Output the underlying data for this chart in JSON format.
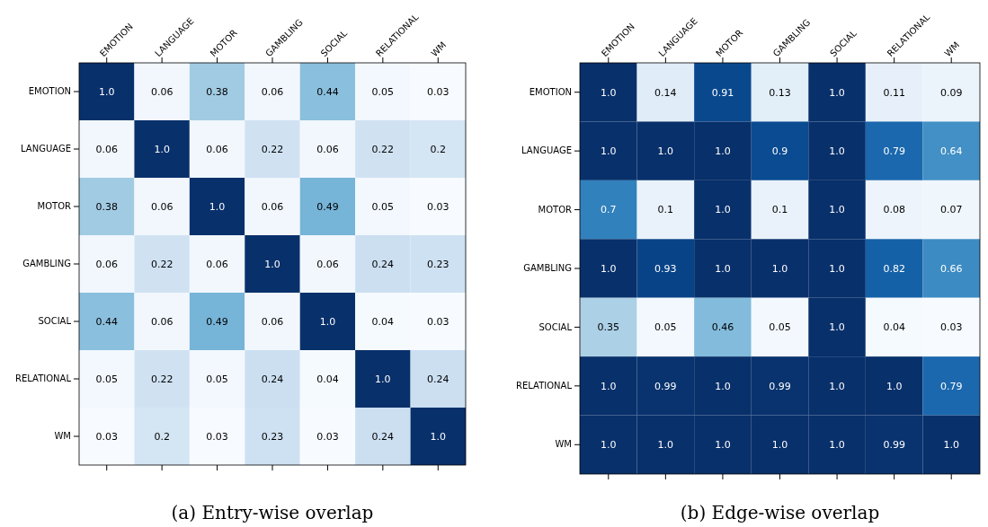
{
  "chart_data": [
    {
      "type": "heatmap",
      "title": "(a) Entry-wise overlap",
      "categories": [
        "EMOTION",
        "LANGUAGE",
        "MOTOR",
        "GAMBLING",
        "SOCIAL",
        "RELATIONAL",
        "WM"
      ],
      "y_categories": [
        "EMOTION",
        "LANGUAGE",
        "MOTOR",
        "GAMBLING",
        "SOCIAL",
        "RELATIONAL",
        "WM"
      ],
      "cells": [
        [
          1.0,
          0.06,
          0.38,
          0.06,
          0.44,
          0.05,
          0.03
        ],
        [
          0.06,
          1.0,
          0.06,
          0.22,
          0.06,
          0.22,
          0.2
        ],
        [
          0.38,
          0.06,
          1.0,
          0.06,
          0.49,
          0.05,
          0.03
        ],
        [
          0.06,
          0.22,
          0.06,
          1.0,
          0.06,
          0.24,
          0.23
        ],
        [
          0.44,
          0.06,
          0.49,
          0.06,
          1.0,
          0.04,
          0.03
        ],
        [
          0.05,
          0.22,
          0.05,
          0.24,
          0.04,
          1.0,
          0.24
        ],
        [
          0.03,
          0.2,
          0.03,
          0.23,
          0.03,
          0.24,
          1.0
        ]
      ],
      "cell_labels": [
        [
          "1.0",
          "0.06",
          "0.38",
          "0.06",
          "0.44",
          "0.05",
          "0.03"
        ],
        [
          "0.06",
          "1.0",
          "0.06",
          "0.22",
          "0.06",
          "0.22",
          "0.2"
        ],
        [
          "0.38",
          "0.06",
          "1.0",
          "0.06",
          "0.49",
          "0.05",
          "0.03"
        ],
        [
          "0.06",
          "0.22",
          "0.06",
          "1.0",
          "0.06",
          "0.24",
          "0.23"
        ],
        [
          "0.44",
          "0.06",
          "0.49",
          "0.06",
          "1.0",
          "0.04",
          "0.03"
        ],
        [
          "0.05",
          "0.22",
          "0.05",
          "0.24",
          "0.04",
          "1.0",
          "0.24"
        ],
        [
          "0.03",
          "0.2",
          "0.03",
          "0.23",
          "0.03",
          "0.24",
          "1.0"
        ]
      ]
    },
    {
      "type": "heatmap",
      "title": "(b) Edge-wise overlap",
      "categories": [
        "EMOTION",
        "LANGUAGE",
        "MOTOR",
        "GAMBLING",
        "SOCIAL",
        "RELATIONAL",
        "WM"
      ],
      "y_categories": [
        "EMOTION",
        "LANGUAGE",
        "MOTOR",
        "GAMBLING",
        "SOCIAL",
        "RELATIONAL",
        "WM"
      ],
      "cells": [
        [
          1.0,
          0.14,
          0.91,
          0.13,
          1.0,
          0.11,
          0.09
        ],
        [
          1.0,
          1.0,
          1.0,
          0.9,
          1.0,
          0.79,
          0.64
        ],
        [
          0.7,
          0.1,
          1.0,
          0.1,
          1.0,
          0.08,
          0.07
        ],
        [
          1.0,
          0.93,
          1.0,
          1.0,
          1.0,
          0.82,
          0.66
        ],
        [
          0.35,
          0.05,
          0.46,
          0.05,
          1.0,
          0.04,
          0.03
        ],
        [
          1.0,
          0.99,
          1.0,
          0.99,
          1.0,
          1.0,
          0.79
        ],
        [
          1.0,
          1.0,
          1.0,
          1.0,
          1.0,
          0.99,
          1.0
        ]
      ],
      "cell_labels": [
        [
          "1.0",
          "0.14",
          "0.91",
          "0.13",
          "1.0",
          "0.11",
          "0.09"
        ],
        [
          "1.0",
          "1.0",
          "1.0",
          "0.9",
          "1.0",
          "0.79",
          "0.64"
        ],
        [
          "0.7",
          "0.1",
          "1.0",
          "0.1",
          "1.0",
          "0.08",
          "0.07"
        ],
        [
          "1.0",
          "0.93",
          "1.0",
          "1.0",
          "1.0",
          "0.82",
          "0.66"
        ],
        [
          "0.35",
          "0.05",
          "0.46",
          "0.05",
          "1.0",
          "0.04",
          "0.03"
        ],
        [
          "1.0",
          "0.99",
          "1.0",
          "0.99",
          "1.0",
          "1.0",
          "0.79"
        ],
        [
          "1.0",
          "1.0",
          "1.0",
          "1.0",
          "1.0",
          "0.99",
          "1.0"
        ]
      ]
    }
  ]
}
